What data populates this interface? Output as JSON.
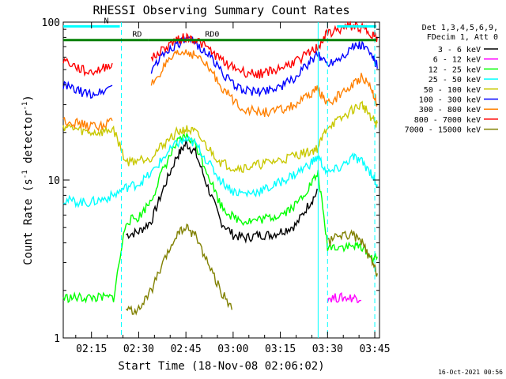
{
  "chart_data": {
    "type": "line",
    "title": "RHESSI Observing Summary Count Rates",
    "xlabel": "Start Time (18-Nov-08 02:06:02)",
    "ylabel": "Count Rate (s⁻¹ detector⁻¹)",
    "ylabel_main": "Count Rate (s",
    "ylabel_sup1": "-1",
    "ylabel_mid": " detector",
    "ylabel_sup2": "-1",
    "ylabel_end": ")",
    "y_scale": "log",
    "ylim": [
      1,
      100
    ],
    "xlim": [
      "02:06:02",
      "03:46:30"
    ],
    "x_ticks": [
      "02:15",
      "02:30",
      "02:45",
      "03:00",
      "03:15",
      "03:30",
      "03:45"
    ],
    "x_tick_minutes": [
      15,
      30,
      45,
      60,
      75,
      90,
      105
    ],
    "y_ticks": [
      "1",
      "10",
      "100"
    ],
    "y_tick_values": [
      1,
      10,
      100
    ],
    "legend_position": "right",
    "legend_header": [
      "Det 1,3,4,5,6,9,",
      "FDecim 1, Att 0"
    ],
    "timestamp": "16-Oct-2021 00:56",
    "annotations": [
      {
        "text": "N",
        "color": "#00ffff",
        "y_value": 94,
        "start_min": 6.03,
        "end_min": 24
      },
      {
        "text": "RD",
        "color": "#008000",
        "y_value": 77,
        "start_min": 6.03,
        "end_min": 33
      },
      {
        "text": "RD0",
        "color": "#008000",
        "y_value": 77,
        "start_min": 33,
        "end_min": 105.5
      },
      {
        "text": "",
        "color": "#00ffff",
        "y_value": 94,
        "start_min": 93,
        "end_min": 105.5
      }
    ],
    "vertical_markers": [
      {
        "min": 24.5,
        "color": "#00ffff",
        "style": "dashed"
      },
      {
        "min": 87,
        "color": "#00ffff",
        "style": "solid"
      },
      {
        "min": 90,
        "color": "#00ffff",
        "style": "dashed"
      },
      {
        "min": 105,
        "color": "#00ffff",
        "style": "dashed"
      }
    ],
    "x_minutes": [
      6,
      10,
      14,
      18,
      22,
      26,
      30,
      34,
      38,
      42,
      45,
      48,
      52,
      56,
      60,
      64,
      68,
      72,
      76,
      80,
      84,
      87,
      90,
      94,
      98,
      101,
      104,
      106
    ],
    "series": [
      {
        "name": "3 - 6 keV",
        "color": "#000000",
        "values": [
          null,
          null,
          null,
          null,
          null,
          4.5,
          4.7,
          5.5,
          9,
          14,
          17,
          15,
          9,
          5.5,
          4.5,
          4.3,
          4.5,
          4.5,
          4.8,
          5.2,
          7,
          8.5,
          null,
          null,
          null,
          null,
          null,
          null
        ]
      },
      {
        "name": "6 - 12 keV",
        "color": "#ff00ff",
        "values": [
          null,
          null,
          null,
          null,
          null,
          null,
          null,
          null,
          null,
          null,
          null,
          null,
          null,
          null,
          null,
          null,
          null,
          null,
          null,
          null,
          null,
          null,
          1.8,
          1.8,
          1.8,
          1.8,
          null,
          null
        ]
      },
      {
        "name": "12 - 25 keV",
        "color": "#00ff00",
        "values": [
          1.8,
          1.8,
          1.8,
          1.8,
          1.8,
          5.5,
          5.8,
          7.5,
          12,
          17,
          19,
          17,
          11,
          7,
          5.8,
          5.5,
          5.6,
          5.8,
          6.2,
          7,
          9,
          11,
          3.8,
          3.8,
          3.8,
          3.8,
          3.2,
          3.2
        ]
      },
      {
        "name": "25 - 50 keV",
        "color": "#00ffff",
        "values": [
          7.5,
          7.3,
          7.2,
          7.5,
          8,
          9,
          9.5,
          11,
          14,
          17,
          18,
          17,
          13,
          10,
          8.5,
          8.2,
          8.5,
          9,
          10,
          11,
          12.5,
          14,
          11,
          12,
          14,
          13,
          11,
          9
        ]
      },
      {
        "name": "50 - 100 keV",
        "color": "#c8c800",
        "values": [
          22,
          21,
          20,
          20,
          21,
          13,
          13.5,
          14,
          17,
          20,
          21,
          20,
          16,
          13,
          12,
          12,
          12.5,
          13,
          13.5,
          14.5,
          15,
          16,
          22,
          24,
          28,
          30,
          25,
          22
        ]
      },
      {
        "name": "100 - 300 keV",
        "color": "#0000ff",
        "values": [
          40,
          37,
          35,
          36,
          40,
          null,
          null,
          50,
          63,
          73,
          77,
          74,
          63,
          50,
          40,
          37,
          36,
          38,
          40,
          45,
          55,
          62,
          55,
          60,
          70,
          72,
          62,
          52
        ]
      },
      {
        "name": "300 - 800 keV",
        "color": "#ff8000",
        "values": [
          24,
          23,
          22,
          22,
          24,
          null,
          null,
          40,
          52,
          62,
          65,
          62,
          52,
          40,
          32,
          28,
          27,
          27,
          28,
          30,
          34,
          38,
          30,
          35,
          40,
          46,
          38,
          30
        ]
      },
      {
        "name": "800 - 7000 keV",
        "color": "#ff0000",
        "values": [
          58,
          52,
          48,
          50,
          56,
          null,
          null,
          58,
          68,
          78,
          80,
          78,
          68,
          58,
          52,
          48,
          47,
          49,
          52,
          57,
          63,
          70,
          85,
          90,
          95,
          92,
          85,
          78
        ]
      },
      {
        "name": "7000 - 15000 keV",
        "color": "#808000",
        "values": [
          null,
          null,
          null,
          null,
          null,
          1.5,
          1.5,
          2,
          3,
          4.5,
          5,
          4.5,
          3,
          2,
          1.5,
          null,
          null,
          null,
          null,
          null,
          null,
          null,
          4,
          4.5,
          4.5,
          4,
          3,
          2.5
        ]
      }
    ]
  }
}
